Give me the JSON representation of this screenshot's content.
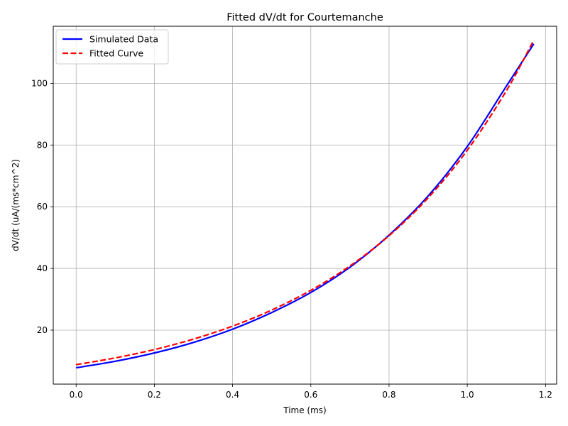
{
  "chart_data": {
    "type": "line",
    "title": "Fitted dV/dt for Courtemanche",
    "xlabel": "Time (ms)",
    "ylabel": "dV/dt (uA/(ms*cm^2)",
    "xlim": [
      -0.0585,
      1.2285
    ],
    "ylim": [
      2.5,
      118.5
    ],
    "xticks": [
      0.0,
      0.2,
      0.4,
      0.6,
      0.8,
      1.0,
      1.2
    ],
    "xtick_labels": [
      "0.0",
      "0.2",
      "0.4",
      "0.6",
      "0.8",
      "1.0",
      "1.2"
    ],
    "yticks": [
      20,
      40,
      60,
      80,
      100
    ],
    "ytick_labels": [
      "20",
      "40",
      "60",
      "80",
      "100"
    ],
    "grid": true,
    "legend_position": "top-left",
    "series": [
      {
        "name": "Simulated Data",
        "color": "#0000ff",
        "style": "solid",
        "x": [
          0.0,
          0.1,
          0.2,
          0.3,
          0.4,
          0.5,
          0.6,
          0.7,
          0.8,
          0.9,
          1.0,
          1.1,
          1.17
        ],
        "y": [
          7.8,
          9.9,
          12.6,
          16.0,
          20.3,
          25.7,
          32.2,
          40.4,
          50.8,
          63.5,
          79.5,
          99.1,
          112.8
        ]
      },
      {
        "name": "Fitted Curve",
        "color": "#ff0000",
        "style": "dashed",
        "x": [
          0.0,
          0.1,
          0.2,
          0.3,
          0.4,
          0.5,
          0.6,
          0.7,
          0.8,
          0.9,
          1.0,
          1.1,
          1.17
        ],
        "y": [
          8.8,
          11.0,
          13.7,
          17.1,
          21.3,
          26.5,
          32.9,
          40.8,
          50.6,
          62.9,
          78.3,
          97.6,
          114.0
        ]
      }
    ]
  }
}
